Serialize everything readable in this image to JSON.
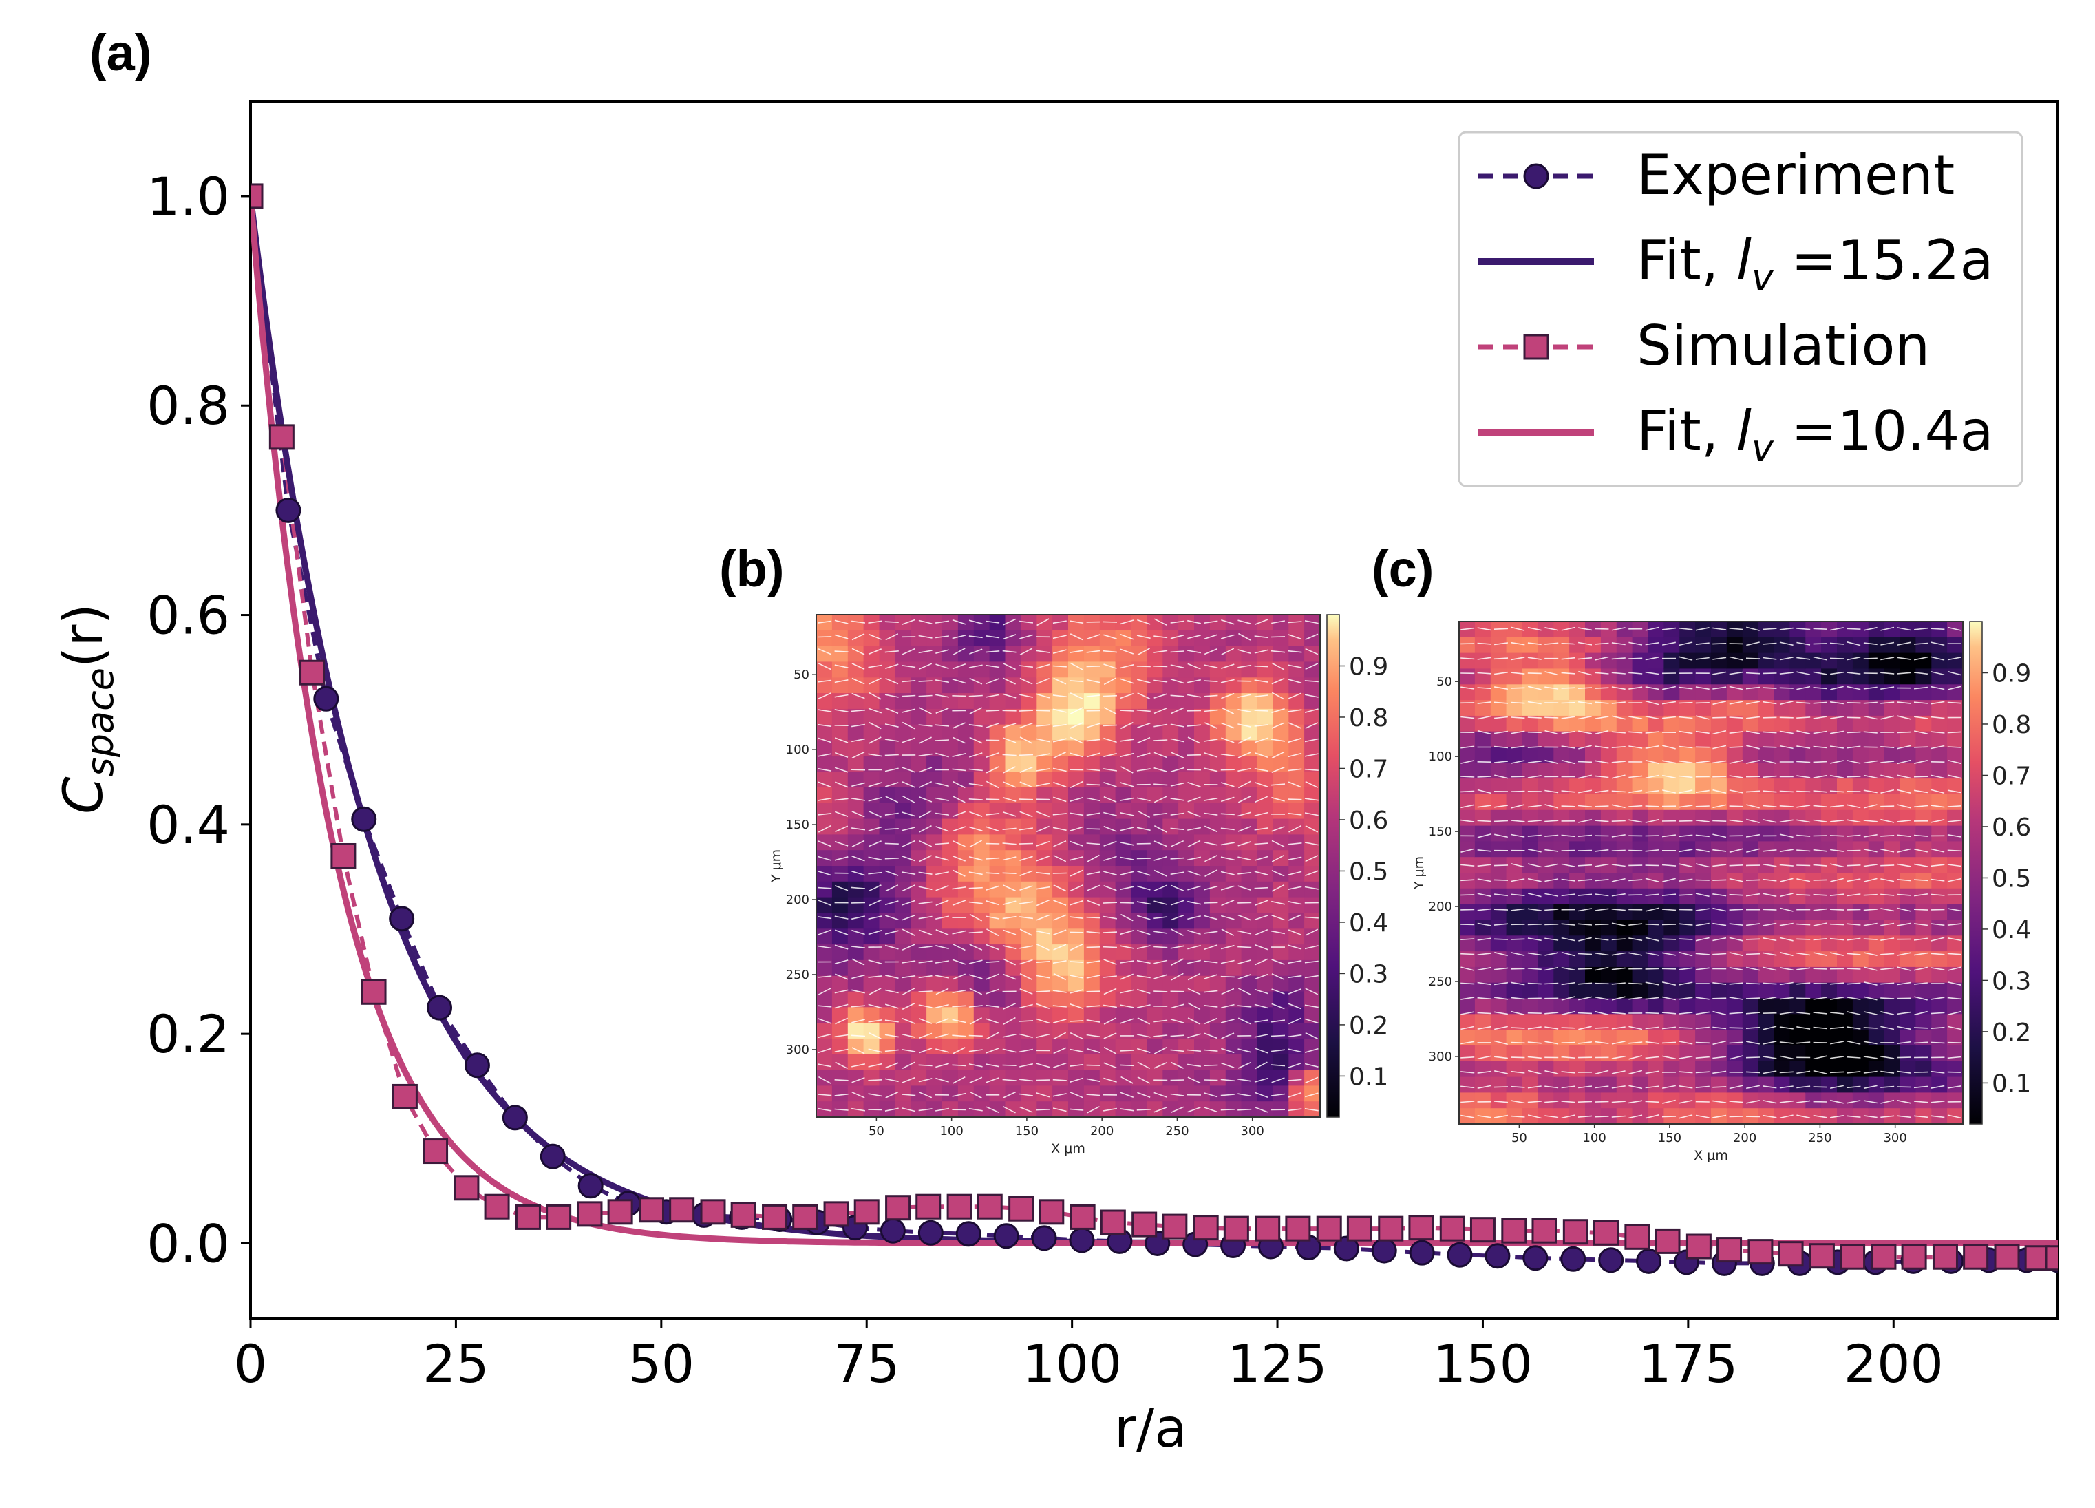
{
  "figure": {
    "panel_a": "(a)",
    "panel_b": "(b)",
    "panel_c": "(c)"
  },
  "colors": {
    "experiment": "#3b1a6e",
    "simulation": "#c0427a",
    "axis": "#000000"
  },
  "chart_data": [
    {
      "type": "line",
      "id": "main",
      "xlabel": "r/a",
      "ylabel": "C",
      "ylabel_sub": "space",
      "ylabel_tail": "(r)",
      "xlim": [
        0,
        220
      ],
      "ylim": [
        -0.072,
        1.09
      ],
      "xticks": [
        0,
        25,
        50,
        75,
        100,
        125,
        150,
        175,
        200
      ],
      "yticks": [
        0.0,
        0.2,
        0.4,
        0.6,
        0.8,
        1.0
      ],
      "xtick_labels": [
        "0",
        "25",
        "50",
        "75",
        "100",
        "125",
        "150",
        "175",
        "200"
      ],
      "ytick_labels": [
        "0.0",
        "0.2",
        "0.4",
        "0.6",
        "0.8",
        "1.0"
      ],
      "legend": {
        "position": "top-right",
        "entries": [
          {
            "label": "Experiment",
            "style": "dashed-circle"
          },
          {
            "label_pre": "Fit, ",
            "label_var": "l",
            "label_sub": "v",
            "label_post": " =15.2a",
            "style": "solid-dark"
          },
          {
            "label": "Simulation",
            "style": "dashed-square"
          },
          {
            "label_pre": "Fit, ",
            "label_var": "l",
            "label_sub": "v",
            "label_post": " =10.4a",
            "style": "solid-pink"
          }
        ]
      },
      "series": [
        {
          "name": "Experiment",
          "marker": "circle",
          "x": [
            0,
            4.6,
            9.2,
            13.8,
            18.4,
            23,
            27.6,
            32.2,
            36.8,
            41.4,
            46,
            50.6,
            55.2,
            59.8,
            64.4,
            69,
            73.6,
            78.2,
            82.8,
            87.4,
            92,
            96.6,
            101.2,
            105.8,
            110.4,
            115,
            119.6,
            124.2,
            128.8,
            133.4,
            138,
            142.6,
            147.2,
            151.8,
            156.4,
            161,
            165.6,
            170.2,
            174.8,
            179.4,
            184,
            188.6,
            193.2,
            197.8,
            202.4,
            207,
            211.6,
            216.2,
            220
          ],
          "y": [
            1.0,
            0.7,
            0.52,
            0.405,
            0.31,
            0.225,
            0.17,
            0.12,
            0.083,
            0.055,
            0.038,
            0.03,
            0.027,
            0.025,
            0.023,
            0.02,
            0.015,
            0.012,
            0.01,
            0.009,
            0.007,
            0.005,
            0.003,
            0.002,
            0.0,
            -0.001,
            -0.002,
            -0.003,
            -0.004,
            -0.005,
            -0.007,
            -0.009,
            -0.011,
            -0.012,
            -0.014,
            -0.015,
            -0.016,
            -0.017,
            -0.018,
            -0.019,
            -0.019,
            -0.019,
            -0.018,
            -0.018,
            -0.017,
            -0.017,
            -0.016,
            -0.016,
            -0.016
          ]
        },
        {
          "name": "Fit, lv =15.2a",
          "fit_length": 15.2,
          "style": "solid"
        },
        {
          "name": "Simulation",
          "marker": "square",
          "x": [
            0,
            3.8,
            7.5,
            11.3,
            15,
            18.8,
            22.5,
            26.3,
            30,
            33.8,
            37.5,
            41.3,
            45,
            48.8,
            52.5,
            56.3,
            60,
            63.8,
            67.5,
            71.3,
            75,
            78.8,
            82.5,
            86.3,
            90,
            93.8,
            97.5,
            101.3,
            105,
            108.8,
            112.5,
            116.3,
            120,
            123.8,
            127.5,
            131.3,
            135,
            138.8,
            142.5,
            146.3,
            150,
            153.8,
            157.5,
            161.3,
            165,
            168.8,
            172.5,
            176.3,
            180,
            183.8,
            187.5,
            191.3,
            195,
            198.8,
            202.5,
            206.3,
            210,
            213.8,
            217.5,
            220
          ],
          "y": [
            1.0,
            0.77,
            0.545,
            0.37,
            0.24,
            0.14,
            0.088,
            0.053,
            0.035,
            0.025,
            0.025,
            0.028,
            0.03,
            0.032,
            0.032,
            0.03,
            0.027,
            0.025,
            0.025,
            0.028,
            0.03,
            0.034,
            0.035,
            0.035,
            0.035,
            0.033,
            0.03,
            0.025,
            0.02,
            0.018,
            0.016,
            0.015,
            0.014,
            0.014,
            0.014,
            0.014,
            0.014,
            0.014,
            0.015,
            0.014,
            0.013,
            0.012,
            0.012,
            0.011,
            0.01,
            0.006,
            0.002,
            -0.003,
            -0.006,
            -0.008,
            -0.01,
            -0.012,
            -0.013,
            -0.013,
            -0.013,
            -0.013,
            -0.013,
            -0.013,
            -0.014,
            -0.014
          ]
        },
        {
          "name": "Fit, lv =10.4a",
          "fit_length": 10.4,
          "style": "solid"
        }
      ]
    },
    {
      "type": "heatmap",
      "id": "inset_b",
      "xlabel": "X μm",
      "ylabel": "Y μm",
      "xticks": [
        "50",
        "100",
        "150",
        "200",
        "250",
        "300"
      ],
      "yticks": [
        "50",
        "100",
        "150",
        "200",
        "250",
        "300"
      ],
      "colorbar_ticks": [
        "0.9",
        "0.8",
        "0.7",
        "0.6",
        "0.5",
        "0.4",
        "0.3",
        "0.2",
        "0.1"
      ],
      "colormap": "magma"
    },
    {
      "type": "heatmap",
      "id": "inset_c",
      "xlabel": "X μm",
      "ylabel": "Y μm",
      "xticks": [
        "50",
        "100",
        "150",
        "200",
        "250",
        "300"
      ],
      "yticks": [
        "50",
        "100",
        "150",
        "200",
        "250",
        "300"
      ],
      "colorbar_ticks": [
        "0.9",
        "0.8",
        "0.7",
        "0.6",
        "0.5",
        "0.4",
        "0.3",
        "0.2",
        "0.1"
      ],
      "colormap": "magma"
    }
  ]
}
